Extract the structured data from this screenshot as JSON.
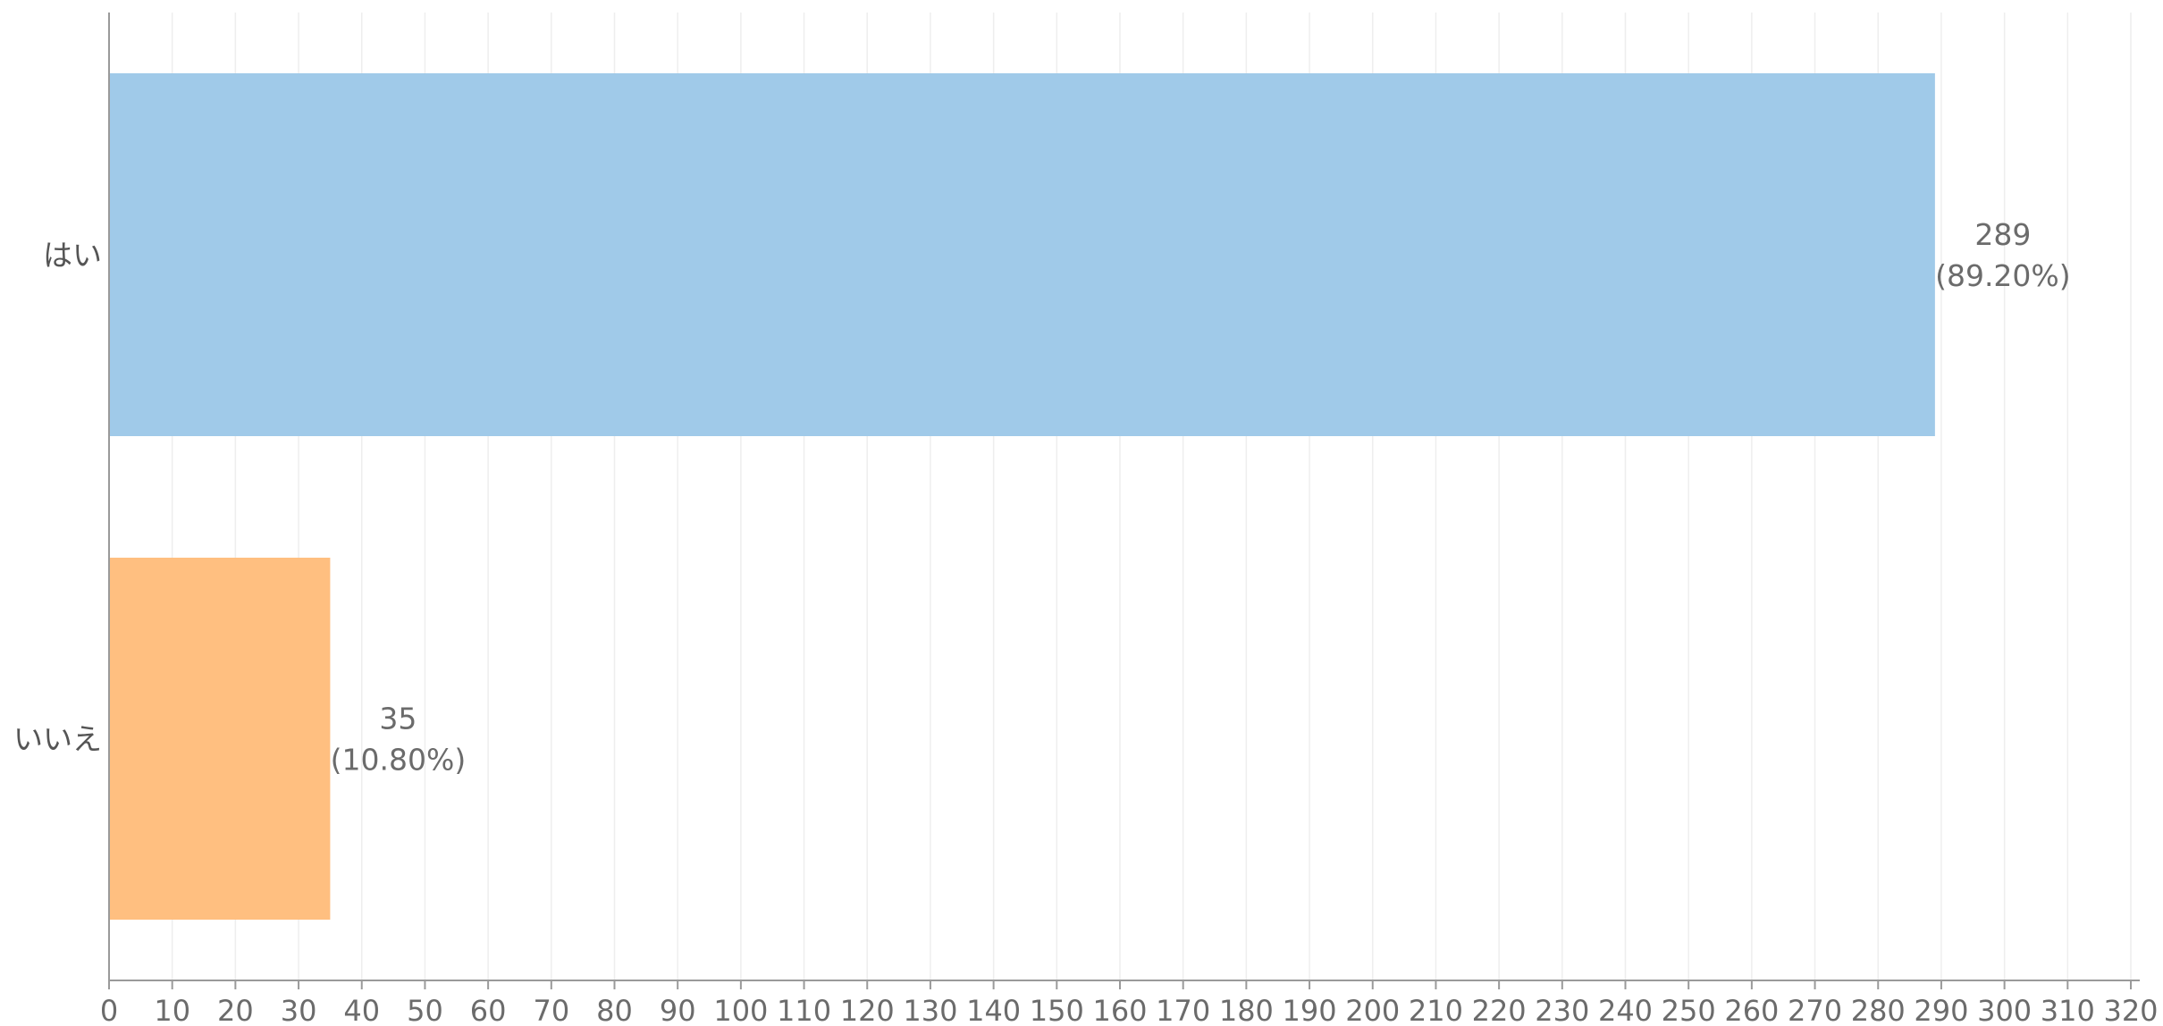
{
  "chart_data": {
    "type": "bar",
    "orientation": "horizontal",
    "categories": [
      "はい",
      "いいえ"
    ],
    "values": [
      289,
      35
    ],
    "value_labels": [
      "289",
      "35"
    ],
    "percent_labels": [
      "(89.20%)",
      "(10.80%)"
    ],
    "colors": [
      "#a0cae9",
      "#ffbf80"
    ],
    "xlim": [
      0,
      320
    ],
    "x_tick_step": 10,
    "x_ticks": [
      "0",
      "10",
      "20",
      "30",
      "40",
      "50",
      "60",
      "70",
      "80",
      "90",
      "100",
      "110",
      "120",
      "130",
      "140",
      "150",
      "160",
      "170",
      "180",
      "190",
      "200",
      "210",
      "220",
      "230",
      "240",
      "250",
      "260",
      "270",
      "280",
      "290",
      "300",
      "310",
      "320"
    ],
    "grid": true,
    "legend": "none",
    "title": "",
    "xlabel": "",
    "ylabel": ""
  }
}
